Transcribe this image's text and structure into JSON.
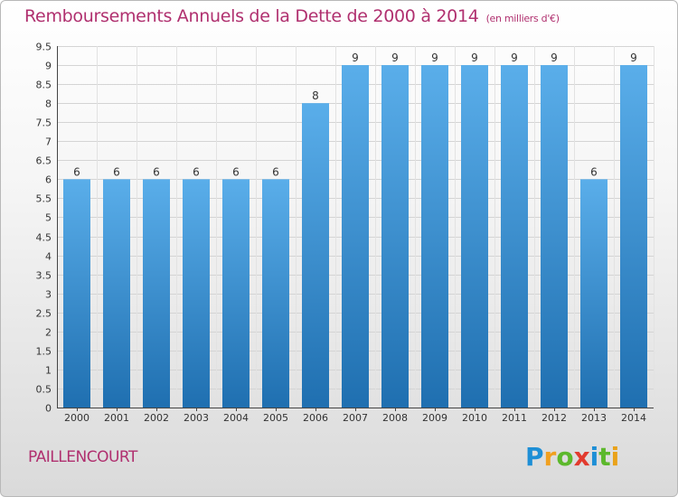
{
  "title": "Remboursements Annuels de la Dette de 2000 à 2014",
  "subtitle": "(en milliers d'€)",
  "commune": "PAILLENCOURT",
  "logo": {
    "letters": [
      "P",
      "r",
      "o",
      "x",
      "i",
      "t",
      "i"
    ],
    "colors": [
      "#1e8fd6",
      "#f0a020",
      "#5cb82c",
      "#e23b2e",
      "#1e8fd6",
      "#5cb82c",
      "#e9a21a"
    ]
  },
  "colors": {
    "bar_light": "#5aaeea",
    "bar_dark": "#1f6fb0",
    "title": "#b0306f"
  },
  "chart_data": {
    "type": "bar",
    "categories": [
      "2000",
      "2001",
      "2002",
      "2003",
      "2004",
      "2005",
      "2006",
      "2007",
      "2008",
      "2009",
      "2010",
      "2011",
      "2012",
      "2013",
      "2014"
    ],
    "values": [
      6,
      6,
      6,
      6,
      6,
      6,
      8,
      9,
      9,
      9,
      9,
      9,
      9,
      6,
      9
    ],
    "data_labels": [
      "6",
      "6",
      "6",
      "6",
      "6",
      "6",
      "8",
      "9",
      "9",
      "9",
      "9",
      "9",
      "9",
      "6",
      "9"
    ],
    "y_ticks": [
      "0",
      "0.5",
      "1",
      "1.5",
      "2",
      "2.5",
      "3",
      "3.5",
      "4",
      "4.5",
      "5",
      "5.5",
      "6",
      "6.5",
      "7",
      "7.5",
      "8",
      "8.5",
      "9",
      "9.5"
    ],
    "ylim": [
      0,
      9.5
    ],
    "grid": true
  }
}
